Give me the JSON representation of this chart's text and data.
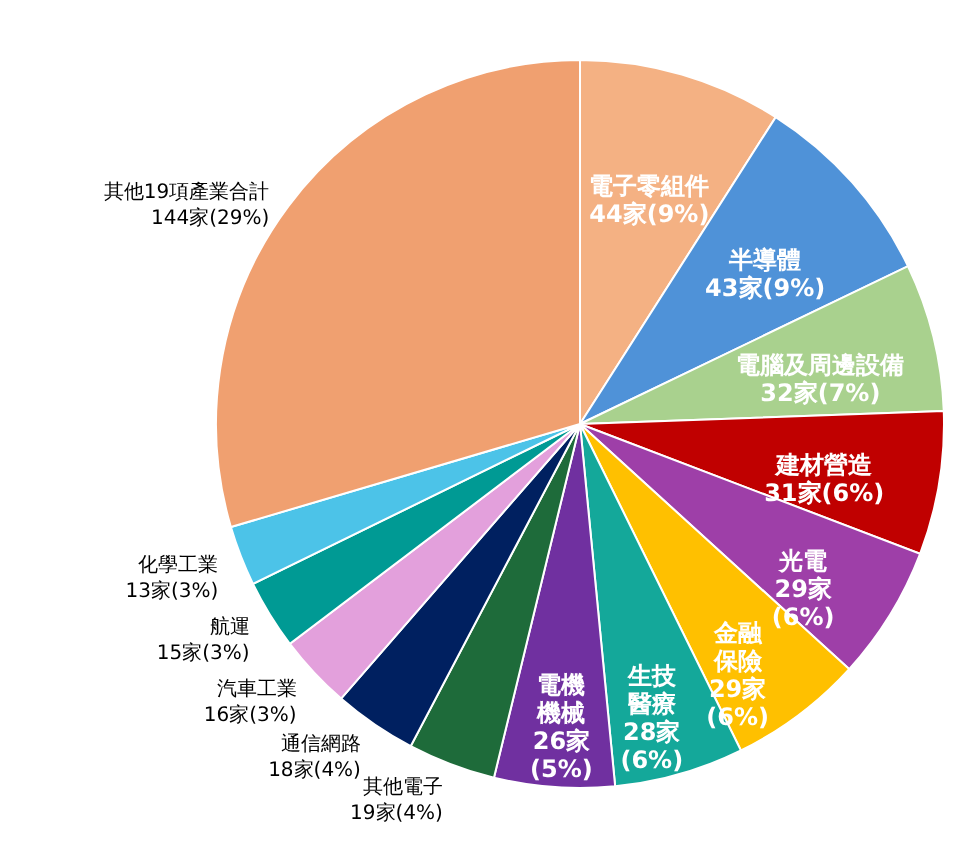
{
  "chart_data": {
    "type": "pie",
    "categories": [
      "電子零組件",
      "半導體",
      "電腦及周邊設備",
      "建材營造",
      "光電",
      "金融保險",
      "生技醫療",
      "電機機械",
      "其他電子",
      "通信網路",
      "汽車工業",
      "航運",
      "化學工業",
      "其他19項產業合計"
    ],
    "values": [
      44,
      43,
      32,
      31,
      29,
      29,
      28,
      26,
      19,
      18,
      16,
      15,
      13,
      144
    ],
    "value_labels": [
      "44家(9%)",
      "43家(9%)",
      "32家(7%)",
      "31家(6%)",
      "29家(6%)",
      "29家(6%)",
      "28家(6%)",
      "26家(5%)",
      "19家(4%)",
      "18家(4%)",
      "16家(3%)",
      "15家(3%)",
      "13家(3%)",
      "144家(29%)"
    ],
    "colors": [
      "#f4b183",
      "#4f92d8",
      "#a9d18e",
      "#c00000",
      "#9e3fa8",
      "#ffc000",
      "#14a89a",
      "#7030a0",
      "#1e6b3a",
      "#002060",
      "#e3a0dc",
      "#009a94",
      "#4cc3e8",
      "#f0a070"
    ]
  }
}
